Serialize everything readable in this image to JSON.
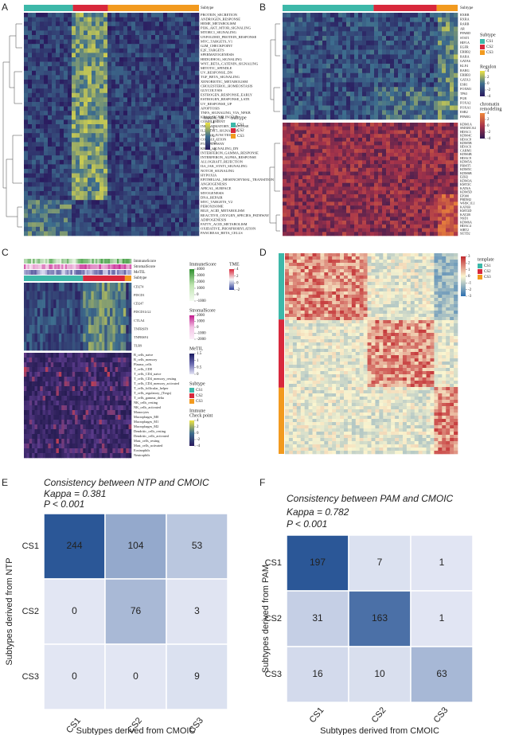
{
  "subtype_colors": [
    "#3db8a9",
    "#d8283c",
    "#f29a1f"
  ],
  "panels": {
    "A": {
      "label": "A",
      "subtype_title": "Subtype",
      "rows": [
        "PROTEIN_SECRETION",
        "ANDROGEN_RESPONSE",
        "HEME_METABOLISM",
        "PI3K_AKT_MTOR_SIGNALING",
        "MTORC1_SIGNALING",
        "UNFOLDED_PROTEIN_RESPONSE",
        "MYC_TARGETS_V1",
        "G2M_CHECKPOINT",
        "E2F_TARGETS",
        "SPERMATOGENESIS",
        "HEDGEHOG_SIGNALING",
        "WNT_BETA_CATENIN_SIGNALING",
        "MITOTIC_SPINDLE",
        "UV_RESPONSE_DN",
        "TGF_BETA_SIGNALING",
        "XENOBIOTIC_METABOLISM",
        "CHOLESTEROL_HOMEOSTASIS",
        "GLYCOLYSIS",
        "ESTROGEN_RESPONSE_EARLY",
        "ESTROGEN_RESPONSE_LATE",
        "UV_RESPONSE_UP",
        "APOPTOSIS",
        "TNFA_SIGNALING_VIA_NFKB",
        "KRAS_SIGNALING_UP",
        "COMPLEMENT",
        "INFLAMMATORY_RESPONSE",
        "IL2_STAT5_SIGNALING",
        "APICAL_JUNCTION",
        "COAGULATION",
        "P53_PATHWAY",
        "KRAS_SIGNALING_DN",
        "INTERFERON_GAMMA_RESPONSE",
        "INTERFERON_ALPHA_RESPONSE",
        "ALLOGRAFT_REJECTION",
        "IL6_JAK_STAT3_SIGNALING",
        "NOTCH_SIGNALING",
        "HYPOXIA",
        "EPITHELIAL_MESENCHYMAL_TRANSITION",
        "ANGIOGENESIS",
        "APICAL_SURFACE",
        "MYOGENESIS",
        "DNA_REPAIR",
        "MYC_TARGETS_V2",
        "PEROXISOME",
        "BILE_ACID_METABOLISM",
        "REACTIVE_OXYGEN_SPECIES_PATHWAY",
        "ADIPOGENESIS",
        "FATTY_ACID_METABOLISM",
        "OXIDATIVE_PHOSPHORYLATION",
        "PANCREAS_BETA_CELLS"
      ],
      "legend_title": "matrix_18",
      "legend_ticks": [
        4,
        2,
        0,
        -2,
        -4
      ],
      "legend_subtype_title": "Subtype",
      "subtypes": [
        "CS1",
        "CS2",
        "CS3"
      ]
    },
    "B": {
      "label": "B",
      "subtype_title": "Subtype",
      "regulon_rows": [
        "RXRB",
        "RXRA",
        "RARB",
        "AR",
        "PPARD",
        "STAT1",
        "HIF1A",
        "EGFR",
        "ERBB2",
        "RARA",
        "GATA6",
        "KLF4",
        "RARG",
        "ERBB3",
        "GATA3",
        "ESR1",
        "FOXM1",
        "TP63",
        "PGR",
        "FOXA2",
        "FOXA1",
        "ESR2",
        "PPARG"
      ],
      "chromatin_rows": [
        "KDM1A",
        "SMARCA4",
        "HDAC1",
        "KDM4C",
        "HDAC8",
        "KDM5B",
        "HDAC6",
        "CARM1",
        "KDM4B",
        "HDAC9",
        "KDM5A",
        "PRMT5",
        "KDM5C",
        "KDM6B",
        "EZH2",
        "KDM3A",
        "KMT2C",
        "KAT6A",
        "KDM5D",
        "EP300",
        "PRDM2",
        "WHSC1L1",
        "KAT6B",
        "KMT2D",
        "KAT2B",
        "NSD1",
        "KDM6A",
        "HDAC4",
        "SIRT2",
        "SETD2"
      ],
      "legend_subtype_title": "Subtype",
      "subtypes": [
        "CS1",
        "CS2",
        "CS3"
      ],
      "regulon_title": "Regulon",
      "regulon_ticks": [
        4,
        2,
        0,
        -2,
        -4
      ],
      "chromatin_title": [
        "chromatin",
        "remodeling"
      ],
      "chromatin_ticks": [
        4,
        2,
        0,
        -2,
        -4
      ]
    },
    "C": {
      "label": "C",
      "tracks": [
        "ImmuneScore",
        "StromalScore",
        "MeTIL",
        "Subtype"
      ],
      "checkpoint_rows": [
        "CD274",
        "PDCD1",
        "CD247",
        "PDCD1LG2",
        "CTLA4",
        "TNFRSF9",
        "TNFRSF4",
        "TLR9"
      ],
      "cell_rows": [
        "B_cells_naive",
        "B_cells_memory",
        "Plasma_cells",
        "T_cells_CD8",
        "T_cells_CD4_naive",
        "T_cells_CD4_memory_resting",
        "T_cells_CD4_memory_activated",
        "T_cells_follicular_helper",
        "T_cells_regulatory_(Tregs)",
        "T_cells_gamma_delta",
        "NK_cells_resting",
        "NK_cells_activated",
        "Monocytes",
        "Macrophages_M0",
        "Macrophages_M1",
        "Macrophages_M2",
        "Dendritic_cells_resting",
        "Dendritic_cells_activated",
        "Mast_cells_resting",
        "Mast_cells_activated",
        "Eosinophils",
        "Neutrophils"
      ],
      "immune_title": "ImmuneScore",
      "immune_ticks": [
        4000,
        3000,
        2000,
        1000,
        0,
        -1000
      ],
      "tme_title": "TME",
      "tme_ticks": [
        4,
        2,
        0,
        -2
      ],
      "stromal_title": "StromalScore",
      "stromal_ticks": [
        2000,
        1000,
        0,
        -1000,
        -2000
      ],
      "metil_title": "MeTIL",
      "metil_ticks": [
        1.5,
        1,
        0.5,
        0
      ],
      "legend_subtype_title": "Subtype",
      "subtypes": [
        "CS1",
        "CS2",
        "CS3"
      ],
      "checkpoint_title": [
        "Immune",
        "Check point"
      ],
      "checkpoint_ticks": [
        4,
        2,
        0,
        -2,
        -4
      ]
    },
    "D": {
      "label": "D",
      "ticks": [
        3,
        2,
        1,
        0,
        -1,
        -2,
        -3
      ],
      "template_title": "template",
      "subtypes": [
        "CS1",
        "CS2",
        "CS3"
      ]
    }
  },
  "chart_data": [
    {
      "type": "heatmap",
      "panel": "E",
      "title": "Consistency between NTP and CMOIC",
      "subtitle": [
        "Kappa = 0.381",
        "P < 0.001"
      ],
      "x_label": "Subtypes derived from CMOIC",
      "y_label": "Subtypes derived from NTP",
      "x_categories": [
        "CS1",
        "CS2",
        "CS3"
      ],
      "y_categories": [
        "CS1",
        "CS2",
        "CS3"
      ],
      "values": [
        [
          244,
          104,
          53
        ],
        [
          0,
          76,
          3
        ],
        [
          0,
          0,
          9
        ]
      ],
      "colors": [
        "#e2e6f3",
        "#2b5797"
      ]
    },
    {
      "type": "heatmap",
      "panel": "F",
      "title": "Consistency between PAM and CMOIC",
      "subtitle": [
        "Kappa = 0.782",
        "P < 0.001"
      ],
      "x_label": "Subtypes derived from CMOIC",
      "y_label": "Subtypes derived from PAM",
      "x_categories": [
        "CS1",
        "CS2",
        "CS3"
      ],
      "y_categories": [
        "CS1",
        "CS2",
        "CS3"
      ],
      "values": [
        [
          197,
          7,
          1
        ],
        [
          31,
          163,
          1
        ],
        [
          16,
          10,
          63
        ]
      ],
      "colors": [
        "#e2e6f3",
        "#2b5797"
      ]
    }
  ]
}
